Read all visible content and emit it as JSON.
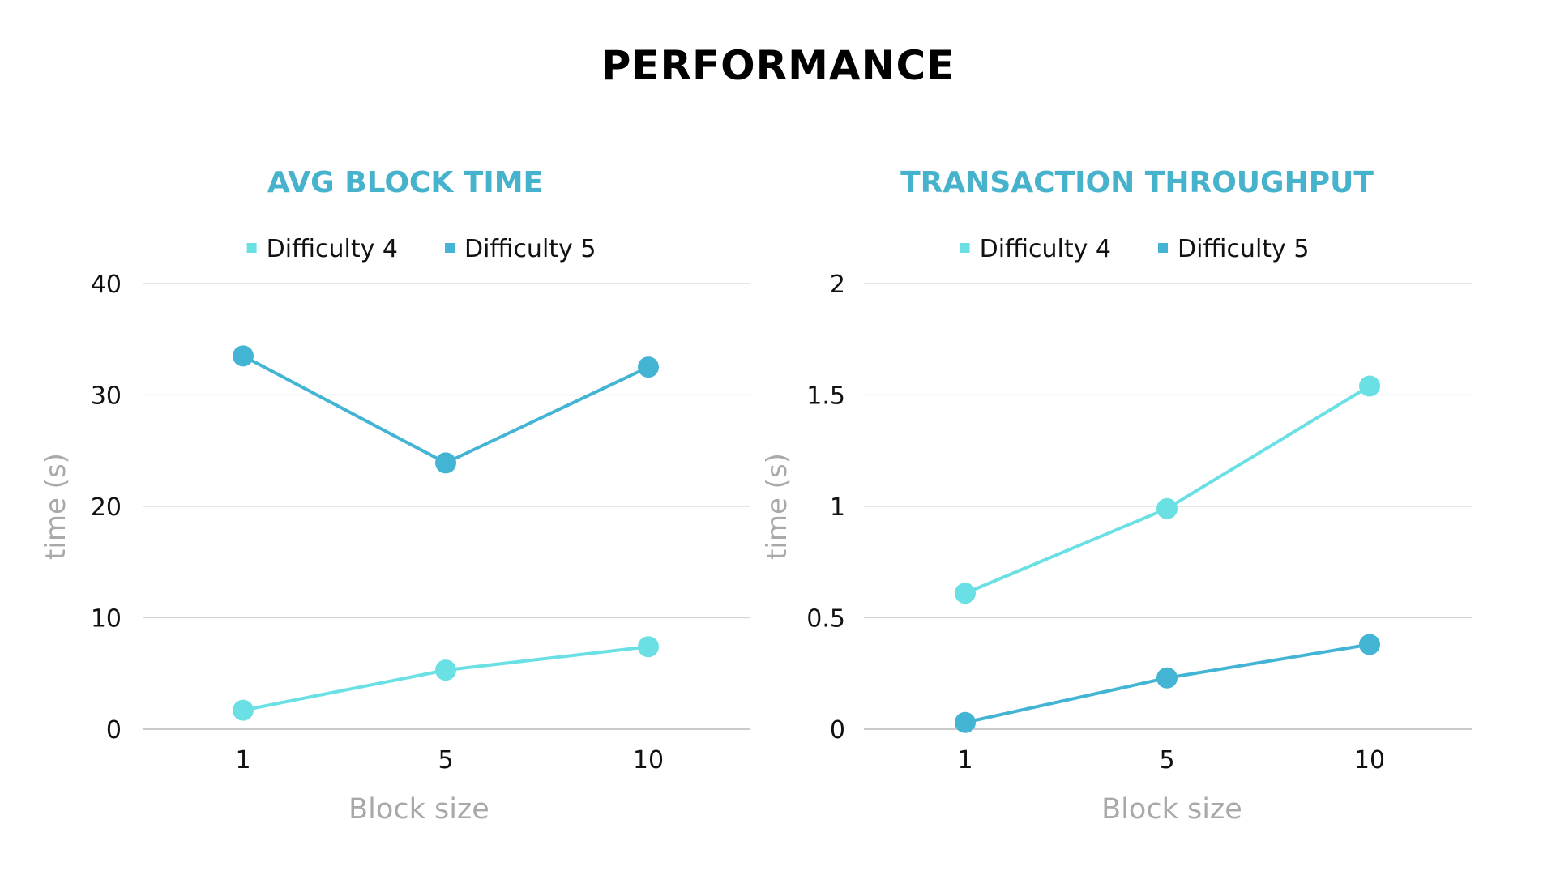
{
  "page": {
    "title": "PERFORMANCE"
  },
  "colors": {
    "difficulty_4": "#6ae0e4",
    "difficulty_5": "#44b4d4",
    "subtitle": "#47b2cc",
    "axis_label": "#a9a9a9",
    "grid": "#d6d6d6",
    "tick": "#111111"
  },
  "chart_data": [
    {
      "type": "line",
      "title": "AVG BLOCK TIME",
      "xlabel": "Block size",
      "ylabel": "time (s)",
      "categories": [
        "1",
        "5",
        "10"
      ],
      "ylim": [
        0,
        40
      ],
      "yticks": [
        0,
        10,
        20,
        30,
        40
      ],
      "ytick_labels": [
        "0",
        "10",
        "20",
        "30",
        "40"
      ],
      "grid": true,
      "legend_position": "top-center",
      "series": [
        {
          "name": "Difficulty 4",
          "color": "#6ae0e4",
          "values": [
            1.7,
            5.3,
            7.4
          ]
        },
        {
          "name": "Difficulty 5",
          "color": "#44b4d4",
          "values": [
            33.5,
            23.9,
            32.5
          ]
        }
      ]
    },
    {
      "type": "line",
      "title": "TRANSACTION THROUGHPUT",
      "xlabel": "Block size",
      "ylabel": "time (s)",
      "categories": [
        "1",
        "5",
        "10"
      ],
      "ylim": [
        0,
        2
      ],
      "yticks": [
        0,
        0.5,
        1,
        1.5,
        2
      ],
      "ytick_labels": [
        "0",
        "0.5",
        "1",
        "1.5",
        "2"
      ],
      "grid": true,
      "legend_position": "top-center",
      "series": [
        {
          "name": "Difficulty 4",
          "color": "#6ae0e4",
          "values": [
            0.61,
            0.99,
            1.54
          ]
        },
        {
          "name": "Difficulty 5",
          "color": "#44b4d4",
          "values": [
            0.03,
            0.23,
            0.38
          ]
        }
      ]
    }
  ]
}
